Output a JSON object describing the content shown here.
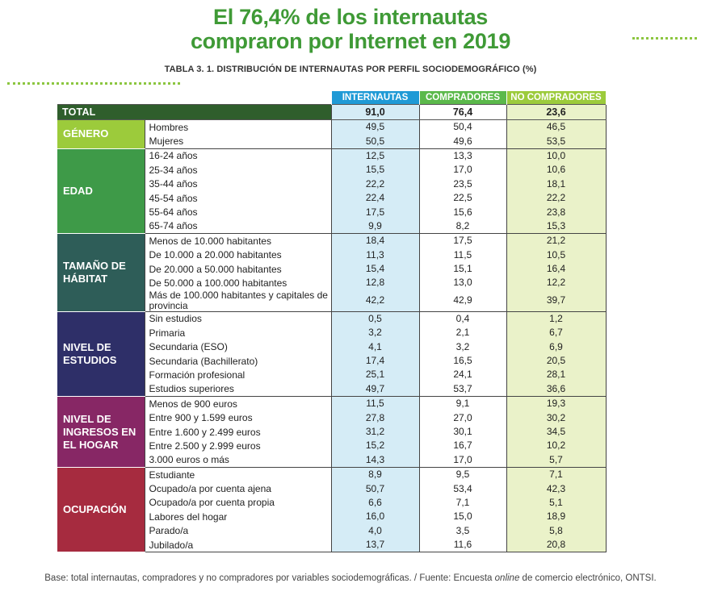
{
  "title": {
    "line1": "El 76,4% de los internautas",
    "line2": "compraron por Internet en 2019"
  },
  "subtitle": "TABLA 3. 1. DISTRIBUCIÓN DE INTERNAUTAS POR PERFIL SOCIODEMOGRÁFICO (%)",
  "columns": [
    "INTERNAUTAS",
    "COMPRADORES",
    "NO COMPRADORES"
  ],
  "total": {
    "label": "TOTAL",
    "values": [
      "91,0",
      "76,4",
      "23,6"
    ]
  },
  "groups": [
    {
      "label": "GÉNERO",
      "color": "#9ccb3b",
      "rows": [
        {
          "label": "Hombres",
          "values": [
            "49,5",
            "50,4",
            "46,5"
          ]
        },
        {
          "label": "Mujeres",
          "values": [
            "50,5",
            "49,6",
            "53,5"
          ]
        }
      ]
    },
    {
      "label": "EDAD",
      "color": "#3e9a48",
      "rows": [
        {
          "label": "16-24 años",
          "values": [
            "12,5",
            "13,3",
            "10,0"
          ]
        },
        {
          "label": "25-34 años",
          "values": [
            "15,5",
            "17,0",
            "10,6"
          ]
        },
        {
          "label": "35-44 años",
          "values": [
            "22,2",
            "23,5",
            "18,1"
          ]
        },
        {
          "label": "45-54 años",
          "values": [
            "22,4",
            "22,5",
            "22,2"
          ]
        },
        {
          "label": "55-64 años",
          "values": [
            "17,5",
            "15,6",
            "23,8"
          ]
        },
        {
          "label": "65-74 años",
          "values": [
            "9,9",
            "8,2",
            "15,3"
          ]
        }
      ]
    },
    {
      "label": "TAMAÑO DE HÁBITAT",
      "color": "#2e5d58",
      "rows": [
        {
          "label": "Menos de 10.000 habitantes",
          "values": [
            "18,4",
            "17,5",
            "21,2"
          ]
        },
        {
          "label": "De 10.000 a 20.000 habitantes",
          "values": [
            "11,3",
            "11,5",
            "10,5"
          ]
        },
        {
          "label": "De 20.000 a 50.000 habitantes",
          "values": [
            "15,4",
            "15,1",
            "16,4"
          ]
        },
        {
          "label": "De 50.000 a 100.000 habitantes",
          "values": [
            "12,8",
            "13,0",
            "12,2"
          ]
        },
        {
          "label": "Más de 100.000 habitantes y capitales de provincia",
          "values": [
            "42,2",
            "42,9",
            "39,7"
          ]
        }
      ]
    },
    {
      "label": "NIVEL DE ESTUDIOS",
      "color": "#2e2f68",
      "rows": [
        {
          "label": "Sin estudios",
          "values": [
            "0,5",
            "0,4",
            "1,2"
          ]
        },
        {
          "label": "Primaria",
          "values": [
            "3,2",
            "2,1",
            "6,7"
          ]
        },
        {
          "label": "Secundaria (ESO)",
          "values": [
            "4,1",
            "3,2",
            "6,9"
          ]
        },
        {
          "label": "Secundaria (Bachillerato)",
          "values": [
            "17,4",
            "16,5",
            "20,5"
          ]
        },
        {
          "label": "Formación profesional",
          "values": [
            "25,1",
            "24,1",
            "28,1"
          ]
        },
        {
          "label": "Estudios superiores",
          "values": [
            "49,7",
            "53,7",
            "36,6"
          ]
        }
      ]
    },
    {
      "label": "NIVEL DE INGRESOS EN EL HOGAR",
      "color": "#872765",
      "rows": [
        {
          "label": "Menos de 900 euros",
          "values": [
            "11,5",
            "9,1",
            "19,3"
          ]
        },
        {
          "label": "Entre 900 y 1.599 euros",
          "values": [
            "27,8",
            "27,0",
            "30,2"
          ]
        },
        {
          "label": "Entre 1.600 y 2.499 euros",
          "values": [
            "31,2",
            "30,1",
            "34,5"
          ]
        },
        {
          "label": "Entre 2.500 y 2.999 euros",
          "values": [
            "15,2",
            "16,7",
            "10,2"
          ]
        },
        {
          "label": "3.000 euros o más",
          "values": [
            "14,3",
            "17,0",
            "5,7"
          ]
        }
      ]
    },
    {
      "label": "OCUPACIÓN",
      "color": "#a62b3f",
      "rows": [
        {
          "label": "Estudiante",
          "values": [
            "8,9",
            "9,5",
            "7,1"
          ]
        },
        {
          "label": "Ocupado/a por cuenta ajena",
          "values": [
            "50,7",
            "53,4",
            "42,3"
          ]
        },
        {
          "label": "Ocupado/a por cuenta propia",
          "values": [
            "6,6",
            "7,1",
            "5,1"
          ]
        },
        {
          "label": "Labores del hogar",
          "values": [
            "16,0",
            "15,0",
            "18,9"
          ]
        },
        {
          "label": "Parado/a",
          "values": [
            "4,0",
            "3,5",
            "5,8"
          ]
        },
        {
          "label": "Jubilado/a",
          "values": [
            "13,7",
            "11,6",
            "20,8"
          ]
        }
      ]
    }
  ],
  "footnote": {
    "before": "Base: total internautas, compradores y no compradores por variables sociodemográficas. / Fuente: Encuesta ",
    "italic": "online",
    "after": " de comercio electrónico, ONTSI."
  },
  "colors": {
    "title": "#3f9a36",
    "internautas": "#1f9ad6",
    "compradores": "#5bb94b",
    "no_compradores": "#9ccb3b",
    "total_label": "#2f5e2c"
  }
}
